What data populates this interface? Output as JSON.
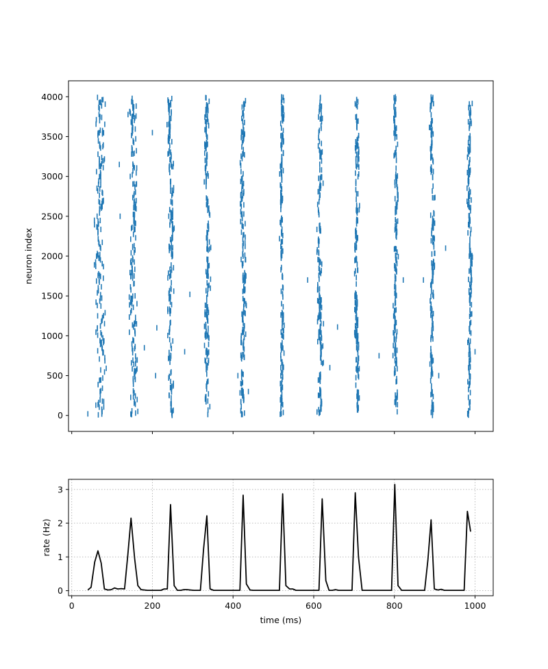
{
  "colors": {
    "raster": "#1f77b4",
    "rate_line": "#000000",
    "grid": "#b0b0b0",
    "background": "#ffffff"
  },
  "chart_data": [
    {
      "type": "scatter",
      "marker": "vertical-tick",
      "title": "",
      "xlabel": "",
      "ylabel": "neuron index",
      "xlim": [
        -8,
        1045
      ],
      "ylim": [
        -200,
        4200
      ],
      "xticks": [
        0,
        200,
        400,
        600,
        800,
        1000
      ],
      "xticklabels_visible": false,
      "yticks": [
        0,
        500,
        1000,
        1500,
        2000,
        2500,
        3000,
        3500,
        4000
      ],
      "grid": false,
      "burst_times_ms": [
        70,
        153,
        245,
        336,
        425,
        521,
        615,
        707,
        803,
        894,
        987
      ],
      "burst_jitter_ms": [
        12,
        10,
        7,
        6,
        6,
        5,
        6,
        5,
        5,
        5,
        5
      ],
      "neuron_range": [
        0,
        4000
      ],
      "approx_spikes_per_burst": 180,
      "isolated_spikes": [
        [
          118,
          3150
        ],
        [
          120,
          2500
        ],
        [
          200,
          3550
        ],
        [
          211,
          1100
        ],
        [
          208,
          500
        ],
        [
          180,
          850
        ],
        [
          253,
          1560
        ],
        [
          280,
          800
        ],
        [
          293,
          1520
        ],
        [
          432,
          1750
        ],
        [
          412,
          500
        ],
        [
          438,
          300
        ],
        [
          585,
          1700
        ],
        [
          608,
          2050
        ],
        [
          620,
          1900
        ],
        [
          640,
          600
        ],
        [
          659,
          1110
        ],
        [
          762,
          750
        ],
        [
          822,
          1700
        ],
        [
          872,
          1700
        ],
        [
          910,
          500
        ],
        [
          927,
          2100
        ],
        [
          1000,
          800
        ],
        [
          40,
          20
        ]
      ]
    },
    {
      "type": "line",
      "title": "",
      "xlabel": "time (ms)",
      "ylabel": "rate (Hz)",
      "xlim": [
        -8,
        1045
      ],
      "ylim": [
        -0.15,
        3.3
      ],
      "xticks": [
        0,
        200,
        400,
        600,
        800,
        1000
      ],
      "yticks": [
        0,
        1,
        2,
        3
      ],
      "grid": true,
      "grid_style": "dotted",
      "series": [
        {
          "x": [
            40,
            48,
            57,
            65,
            73,
            81,
            90,
            98,
            106,
            114,
            123,
            131,
            139,
            147,
            156,
            164,
            172,
            180,
            188,
            196,
            205,
            213,
            221,
            229,
            237,
            245,
            254,
            262,
            270,
            278,
            286,
            294,
            303,
            311,
            319,
            327,
            335,
            343,
            352,
            360,
            368,
            376,
            384,
            393,
            401,
            409,
            417,
            425,
            433,
            442,
            450,
            458,
            466,
            474,
            482,
            491,
            499,
            507,
            515,
            523,
            531,
            540,
            548,
            556,
            564,
            572,
            580,
            589,
            597,
            605,
            613,
            621,
            630,
            638,
            646,
            654,
            662,
            670,
            679,
            687,
            695,
            703,
            711,
            720,
            728,
            736,
            744,
            752,
            760,
            769,
            777,
            785,
            793,
            801,
            809,
            818,
            826,
            834,
            842,
            850,
            858,
            867,
            875,
            883,
            891,
            899,
            908,
            916,
            924,
            932,
            940,
            948,
            957,
            965,
            973,
            981,
            989
          ],
          "values": [
            0.02,
            0.1,
            0.85,
            1.18,
            0.82,
            0.05,
            0.02,
            0.03,
            0.08,
            0.05,
            0.06,
            0.05,
            1.05,
            2.15,
            0.95,
            0.15,
            0.03,
            0.02,
            0.01,
            0.01,
            0.01,
            0.01,
            0.01,
            0.05,
            0.05,
            2.55,
            0.15,
            0.01,
            0.01,
            0.03,
            0.03,
            0.02,
            0.01,
            0.01,
            0.01,
            1.25,
            2.22,
            0.05,
            0.01,
            0.01,
            0.01,
            0.01,
            0.01,
            0.01,
            0.01,
            0.01,
            0.01,
            2.83,
            0.2,
            0.02,
            0.01,
            0.01,
            0.01,
            0.01,
            0.01,
            0.01,
            0.01,
            0.01,
            0.01,
            2.87,
            0.15,
            0.05,
            0.05,
            0.01,
            0.01,
            0.01,
            0.01,
            0.01,
            0.01,
            0.01,
            0.01,
            2.72,
            0.3,
            0.01,
            0.01,
            0.03,
            0.01,
            0.01,
            0.01,
            0.01,
            0.01,
            2.9,
            1.0,
            0.01,
            0.01,
            0.01,
            0.01,
            0.01,
            0.01,
            0.01,
            0.01,
            0.01,
            0.01,
            3.15,
            0.15,
            0.01,
            0.01,
            0.01,
            0.01,
            0.01,
            0.01,
            0.01,
            0.01,
            0.9,
            2.1,
            0.05,
            0.02,
            0.04,
            0.01,
            0.01,
            0.01,
            0.01,
            0.01,
            0.01,
            0.01,
            2.35,
            1.75
          ]
        }
      ]
    }
  ]
}
